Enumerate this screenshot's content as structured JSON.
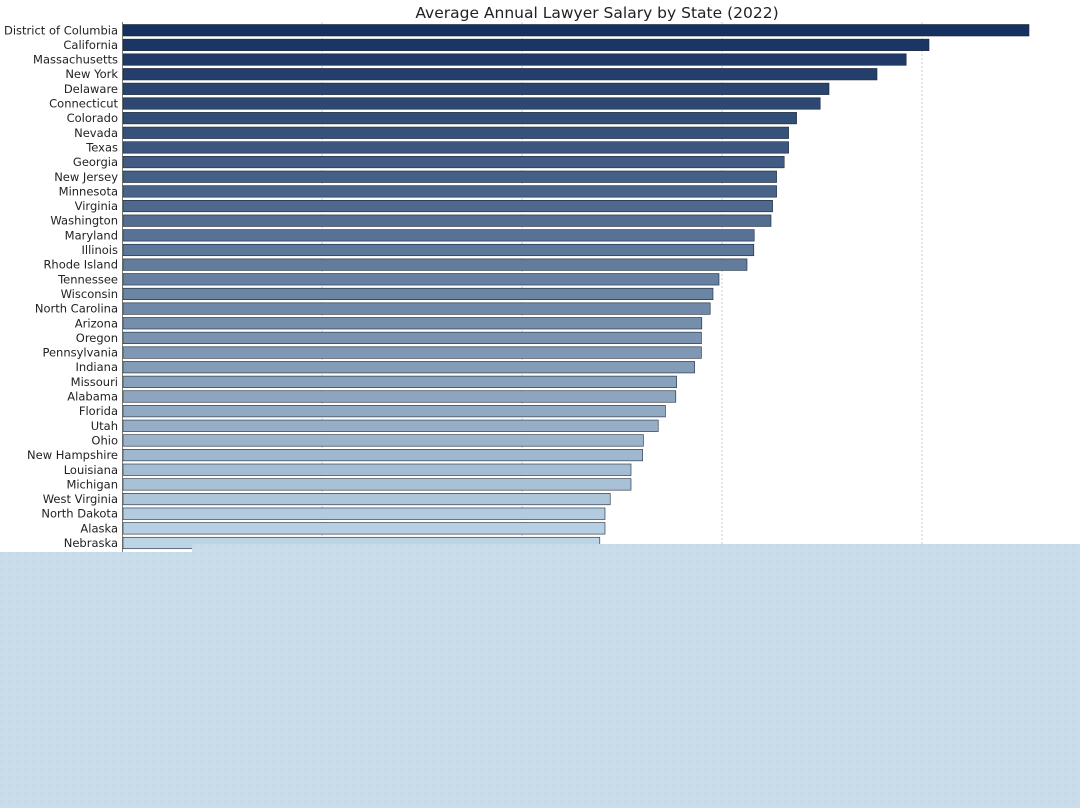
{
  "chart_data": {
    "type": "bar",
    "orientation": "horizontal",
    "title": "Average Annual Lawyer Salary by State (2022)",
    "xlabel": "",
    "ylabel": "",
    "xlim": [
      0,
      240000
    ],
    "grid": "vertical",
    "categories": [
      "District of Columbia",
      "California",
      "Massachusetts",
      "New York",
      "Delaware",
      "Connecticut",
      "Colorado",
      "Nevada",
      "Texas",
      "Georgia",
      "New Jersey",
      "Minnesota",
      "Virginia",
      "Washington",
      "Maryland",
      "Illinois",
      "Rhode Island",
      "Tennessee",
      "Wisconsin",
      "North Carolina",
      "Arizona",
      "Oregon",
      "Pennsylvania",
      "Indiana",
      "Missouri",
      "Alabama",
      "Florida",
      "Utah",
      "Ohio",
      "New Hampshire",
      "Louisiana",
      "Michigan",
      "West Virginia",
      "North Dakota",
      "Alaska",
      "Nebraska"
    ],
    "values": [
      226500,
      201500,
      195800,
      188500,
      176500,
      174300,
      168400,
      166400,
      166400,
      165300,
      163400,
      163400,
      162400,
      162000,
      157800,
      157700,
      156000,
      149000,
      147500,
      146800,
      144700,
      144600,
      144600,
      142900,
      138400,
      138200,
      135600,
      133800,
      130100,
      129900,
      127000,
      127000,
      121800,
      120500,
      120500,
      119200
    ],
    "color_scale": {
      "dark": "#16315f",
      "light": "#bcd4e6"
    },
    "overlay_color": "#c8dcea"
  }
}
